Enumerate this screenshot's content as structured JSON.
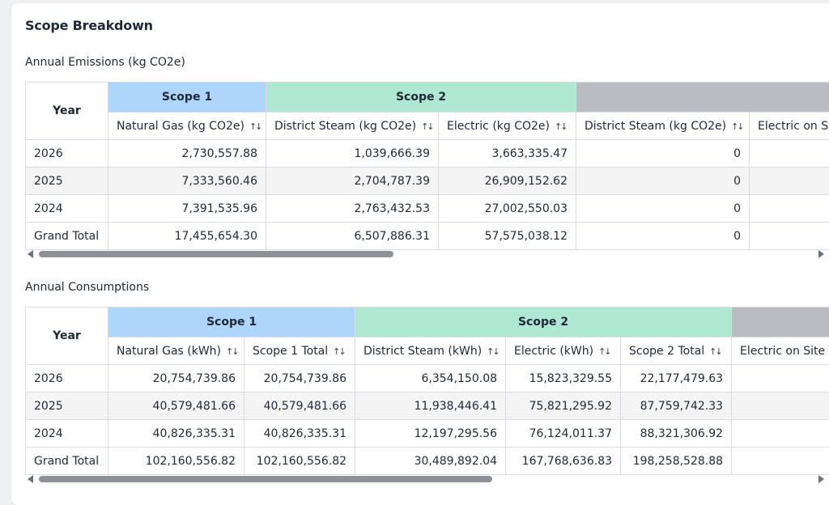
{
  "title": "Scope Breakdown",
  "emissions": {
    "title": "Annual Emissions (kg CO2e)",
    "year_label": "Year",
    "groups": [
      "Scope 1",
      "Scope 2",
      ""
    ],
    "columns": [
      "Natural Gas (kg CO2e)",
      "District Steam (kg CO2e)",
      "Electric (kg CO2e)",
      "District Steam (kg CO2e)",
      "Electric on S"
    ],
    "rows": [
      {
        "year": "2026",
        "cells": [
          "2,730,557.88",
          "1,039,666.39",
          "3,663,335.47",
          "0",
          ""
        ]
      },
      {
        "year": "2025",
        "cells": [
          "7,333,560.46",
          "2,704,787.39",
          "26,909,152.62",
          "0",
          ""
        ]
      },
      {
        "year": "2024",
        "cells": [
          "7,391,535.96",
          "2,763,432.53",
          "27,002,550.03",
          "0",
          ""
        ]
      },
      {
        "year": "Grand Total",
        "cells": [
          "17,455,654.30",
          "6,507,886.31",
          "57,575,038.12",
          "0",
          ""
        ]
      }
    ]
  },
  "consumptions": {
    "title": "Annual Consumptions",
    "year_label": "Year",
    "groups": [
      "Scope 1",
      "Scope 2",
      ""
    ],
    "columns": [
      "Natural Gas (kWh)",
      "Scope 1 Total",
      "District Steam (kWh)",
      "Electric (kWh)",
      "Scope 2 Total",
      "Electric on Site"
    ],
    "rows": [
      {
        "year": "2026",
        "cells": [
          "20,754,739.86",
          "20,754,739.86",
          "6,354,150.08",
          "15,823,329.55",
          "22,177,479.63",
          ""
        ]
      },
      {
        "year": "2025",
        "cells": [
          "40,579,481.66",
          "40,579,481.66",
          "11,938,446.41",
          "75,821,295.92",
          "87,759,742.33",
          ""
        ]
      },
      {
        "year": "2024",
        "cells": [
          "40,826,335.31",
          "40,826,335.31",
          "12,197,295.56",
          "76,124,011.37",
          "88,321,306.92",
          ""
        ]
      },
      {
        "year": "Grand Total",
        "cells": [
          "102,160,556.82",
          "102,160,556.82",
          "30,489,892.04",
          "167,768,636.83",
          "198,258,528.88",
          ""
        ]
      }
    ]
  },
  "sort_icon": "sort-arrows-icon",
  "colors": {
    "scope1": "#aed6fb",
    "scope2": "#aee8d2",
    "scope3": "#babcc2"
  }
}
